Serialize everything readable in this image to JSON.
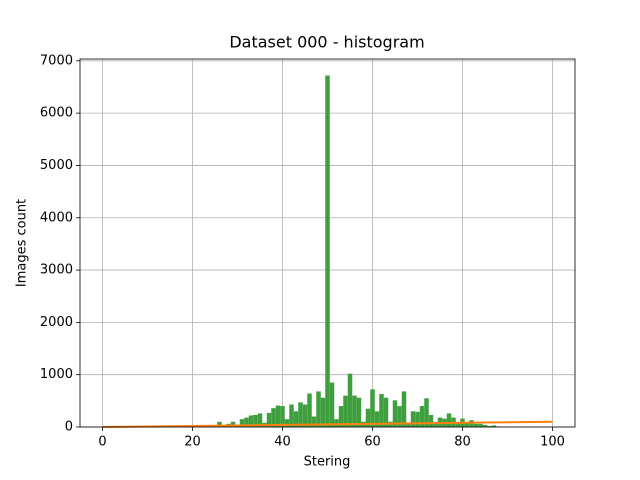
{
  "chart_data": {
    "type": "histogram",
    "title": "Dataset 000 - histogram",
    "x_label": "Stering",
    "y_label": "Images count",
    "bins": [
      25.5,
      26.5,
      27.5,
      28.5,
      29.5,
      30.5,
      31.5,
      32.5,
      33.5,
      34.5,
      35.5,
      36.5,
      37.5,
      38.5,
      39.5,
      40.5,
      41.5,
      42.5,
      43.5,
      44.5,
      45.5,
      46.5,
      47.5,
      48.5,
      49.5,
      50.5,
      51.5,
      52.5,
      53.5,
      54.5,
      55.5,
      56.5,
      57.5,
      58.5,
      59.5,
      60.5,
      61.5,
      62.5,
      63.5,
      64.5,
      65.5,
      66.5,
      67.5,
      68.5,
      69.5,
      70.5,
      71.5,
      72.5,
      73.5,
      74.5,
      75.5,
      76.5,
      77.5,
      78.5,
      79.5,
      80.5,
      81.5,
      82.5,
      83.5,
      84.5,
      85.5,
      86.5,
      87.5,
      88.5
    ],
    "values": [
      100,
      30,
      60,
      100,
      40,
      150,
      180,
      220,
      230,
      260,
      80,
      270,
      360,
      410,
      400,
      150,
      430,
      300,
      470,
      430,
      640,
      200,
      680,
      560,
      6720,
      850,
      150,
      400,
      600,
      1020,
      600,
      560,
      100,
      350,
      720,
      300,
      630,
      560,
      100,
      510,
      400,
      680,
      80,
      300,
      290,
      400,
      550,
      230,
      80,
      180,
      160,
      260,
      180,
      80,
      160,
      80,
      130,
      60,
      60,
      40,
      20,
      30,
      10
    ],
    "color": "#3f9f3f",
    "lines": [
      {
        "x": [
          0,
          100
        ],
        "values": [
          0,
          100
        ],
        "color": "#ff7f0e"
      }
    ],
    "xlim": [
      -5,
      105
    ],
    "ylim": [
      0,
      7035
    ],
    "xticks": [
      0,
      20,
      40,
      60,
      80,
      100
    ],
    "yticks": [
      0,
      1000,
      2000,
      3000,
      4000,
      5000,
      6000,
      7000
    ],
    "grid": true
  }
}
